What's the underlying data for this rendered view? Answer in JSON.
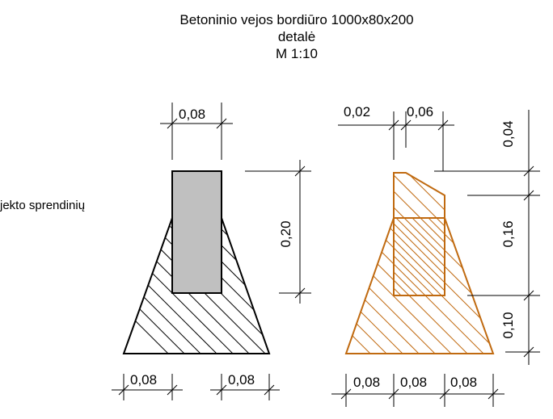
{
  "title": {
    "line1": "Betoninio vejos bordiūro 1000x80x200",
    "line2": "detalė",
    "line3": "M 1:10"
  },
  "side_note": "jekto sprendinių",
  "left_detail": {
    "top_width": "0,08",
    "height": "0,20",
    "bottom_left": "0,08",
    "bottom_right": "0,08"
  },
  "right_detail": {
    "top_left": "0,02",
    "top_right": "0,06",
    "right_top": "0,04",
    "right_mid": "0,16",
    "right_bottom": "0,10",
    "bottom_1": "0,08",
    "bottom_2": "0,08",
    "bottom_3": "0,08"
  },
  "colors": {
    "curb_fill": "#c0c0c0",
    "highlight": "#c06a10",
    "line": "#000000"
  }
}
